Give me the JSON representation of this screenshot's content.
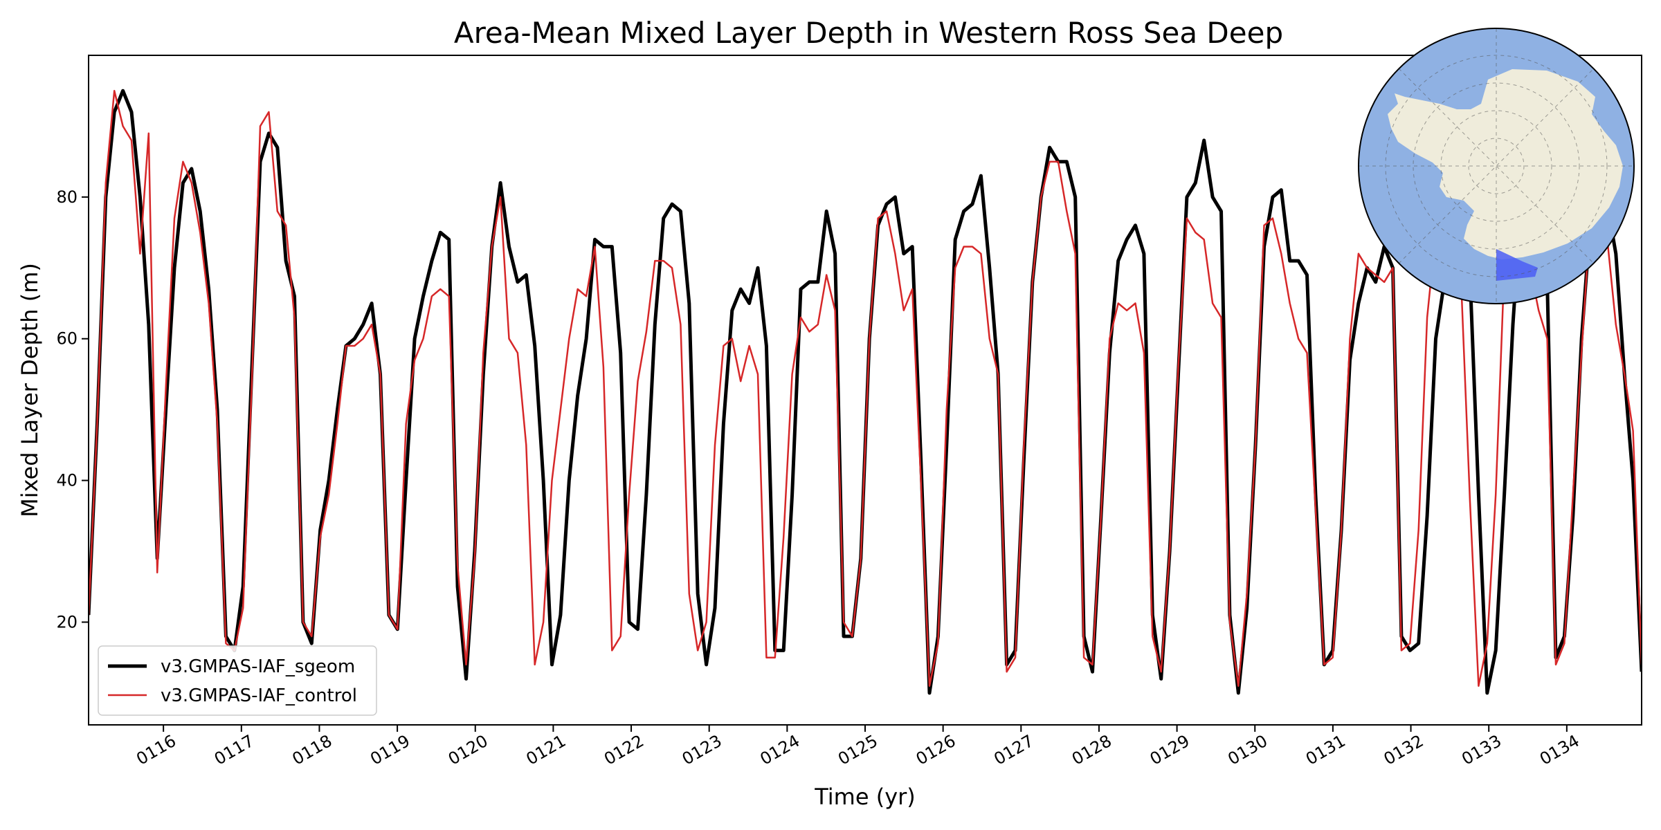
{
  "chart_data": {
    "type": "line",
    "title": "Area-Mean Mixed Layer Depth in Western Ross Sea Deep",
    "xlabel": "Time (yr)",
    "ylabel": "Mixed Layer Depth (m)",
    "xlim": [
      115.04,
      134.96
    ],
    "ylim": [
      5.5,
      100
    ],
    "x_ticks": [
      116,
      117,
      118,
      119,
      120,
      121,
      122,
      123,
      124,
      125,
      126,
      127,
      128,
      129,
      130,
      131,
      132,
      133,
      134
    ],
    "x_tick_labels": [
      "0116",
      "0117",
      "0118",
      "0119",
      "0120",
      "0121",
      "0122",
      "0123",
      "0124",
      "0125",
      "0126",
      "0127",
      "0128",
      "0129",
      "0130",
      "0131",
      "0132",
      "0133",
      "0134"
    ],
    "y_ticks": [
      20,
      40,
      60,
      80
    ],
    "y_tick_labels": [
      "20",
      "40",
      "60",
      "80"
    ],
    "grid": false,
    "legend_position": "lower-left",
    "inset": "south-polar-map-with-highlighted-region",
    "colors": {
      "sgeom": "#000000",
      "control": "#d62728",
      "ocean": "#8fb1e3",
      "land": "#efecdb",
      "region": "#4b5ef5"
    },
    "series": [
      {
        "name": "v3.GMPAS-IAF_sgeom",
        "color": "#000000",
        "values": [
          21,
          48,
          80,
          92,
          95,
          92,
          80,
          62,
          29,
          50,
          70,
          82,
          84,
          78,
          67,
          50,
          18,
          16,
          25,
          55,
          85,
          89,
          87,
          71,
          66,
          20,
          17,
          33,
          40,
          50,
          59,
          60,
          62,
          65,
          55,
          21,
          19,
          40,
          60,
          66,
          71,
          75,
          74,
          25,
          12,
          30,
          55,
          73,
          82,
          73,
          68,
          69,
          59,
          40,
          14,
          21,
          40,
          52,
          60,
          74,
          73,
          73,
          58,
          20,
          19,
          38,
          62,
          77,
          79,
          78,
          65,
          24,
          14,
          22,
          48,
          64,
          67,
          65,
          70,
          59,
          16,
          16,
          38,
          67,
          68,
          68,
          78,
          72,
          18,
          18,
          29,
          60,
          76,
          79,
          80,
          72,
          73,
          43,
          10,
          18,
          45,
          74,
          78,
          79,
          83,
          70,
          55,
          14,
          16,
          43,
          68,
          80,
          87,
          85,
          85,
          80,
          18,
          13,
          35,
          58,
          71,
          74,
          76,
          72,
          21,
          12,
          30,
          55,
          80,
          82,
          88,
          80,
          78,
          21,
          10,
          22,
          45,
          73,
          80,
          81,
          71,
          71,
          69,
          38,
          14,
          16,
          33,
          57,
          65,
          70,
          68,
          73,
          70,
          18,
          16,
          17,
          35,
          60,
          68,
          72,
          73,
          69,
          38,
          10,
          16,
          38,
          62,
          80,
          78,
          70,
          68,
          15,
          18,
          35,
          60,
          76,
          77,
          79,
          72,
          55,
          40,
          13
        ]
      },
      {
        "name": "v3.GMPAS-IAF_control",
        "color": "#d62728",
        "values": [
          21,
          48,
          82,
          95,
          90,
          88,
          72,
          89,
          27,
          53,
          77,
          85,
          82,
          75,
          65,
          48,
          17,
          16,
          22,
          53,
          90,
          92,
          78,
          76,
          63,
          20,
          18,
          32,
          38,
          48,
          59,
          59,
          60,
          62,
          55,
          21,
          19,
          48,
          57,
          60,
          66,
          67,
          66,
          28,
          14,
          29,
          58,
          73,
          80,
          60,
          58,
          45,
          14,
          20,
          40,
          50,
          60,
          67,
          66,
          73,
          56,
          16,
          18,
          38,
          54,
          61,
          71,
          71,
          70,
          62,
          24,
          16,
          20,
          45,
          59,
          60,
          54,
          59,
          55,
          15,
          15,
          32,
          55,
          63,
          61,
          62,
          69,
          64,
          20,
          18,
          29,
          60,
          77,
          78,
          72,
          64,
          67,
          40,
          11,
          17,
          50,
          70,
          73,
          73,
          72,
          60,
          55,
          13,
          15,
          45,
          68,
          80,
          85,
          85,
          78,
          72,
          15,
          14,
          35,
          60,
          65,
          64,
          65,
          58,
          18,
          13,
          30,
          56,
          77,
          75,
          74,
          65,
          63,
          20,
          11,
          24,
          45,
          76,
          77,
          72,
          65,
          60,
          58,
          36,
          14,
          15,
          33,
          60,
          72,
          70,
          69,
          68,
          70,
          16,
          17,
          33,
          63,
          75,
          77,
          69,
          67,
          37,
          11,
          17,
          38,
          70,
          75,
          73,
          70,
          64,
          60,
          14,
          17,
          38,
          58,
          77,
          80,
          74,
          62,
          55,
          47,
          14
        ]
      }
    ]
  }
}
